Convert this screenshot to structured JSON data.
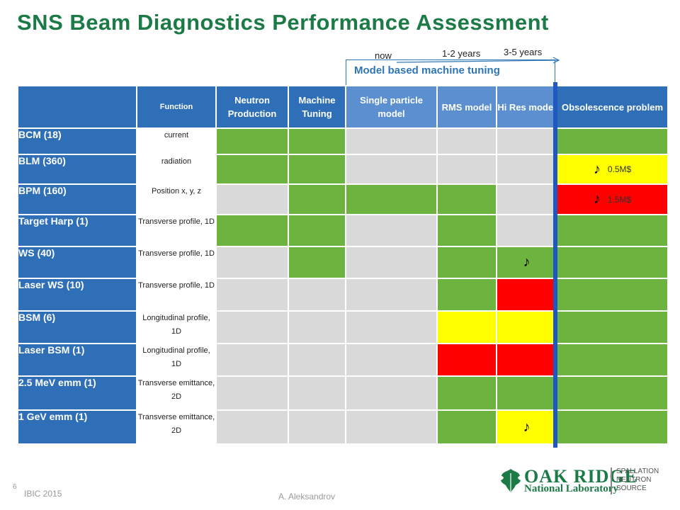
{
  "title": "SNS Beam Diagnostics Performance Assessment",
  "timeline": {
    "now": "now",
    "mid": "1-2 years",
    "far": "3-5 years"
  },
  "model_label": "Model based machine tuning",
  "headers": {
    "function": "Function",
    "neutron": "Neutron Production",
    "machine": "Machine Tuning",
    "single": "Single particle model",
    "rms": "RMS model",
    "hires": "Hi Res model",
    "obsolete": "Obsolescence problem"
  },
  "colors": {
    "green": "#6db33f",
    "yellow": "#ffff00",
    "red": "#ff0000",
    "grey": "#d9d9d9",
    "header": "#2f6fb7"
  },
  "rows": [
    {
      "name": "BCM (18)",
      "function": "current"
    },
    {
      "name": "BLM (360)",
      "function": "radiation",
      "obsolete_note": "0.5M$"
    },
    {
      "name": "BPM (160)",
      "function": "Position x, y, z",
      "obsolete_note": "1.5M$"
    },
    {
      "name": "Target Harp (1)",
      "function": "Transverse profile, 1D"
    },
    {
      "name": "WS (40)",
      "function": "Transverse profile, 1D"
    },
    {
      "name": "Laser WS (10)",
      "function": "Transverse profile, 1D"
    },
    {
      "name": "BSM (6)",
      "function": "Longitudinal profile, 1D"
    },
    {
      "name": "Laser BSM (1)",
      "function": "Longitudinal profile, 1D"
    },
    {
      "name": "2.5 MeV emm (1)",
      "function": "Transverse emittance, 2D"
    },
    {
      "name": "1 GeV emm (1)",
      "function": "Transverse emittance, 2D"
    }
  ],
  "note_icon": "musical-note-icon",
  "note_glyph": "♪",
  "footer": {
    "page": "6",
    "conference": "IBIC 2015",
    "author": "A. Aleksandrov"
  },
  "logo": {
    "oak": "OAK RIDGE",
    "national": "National Laboratory",
    "sns1": "SPALLATION",
    "sns2": "NEUTRON",
    "sns3": "SOURCE"
  }
}
